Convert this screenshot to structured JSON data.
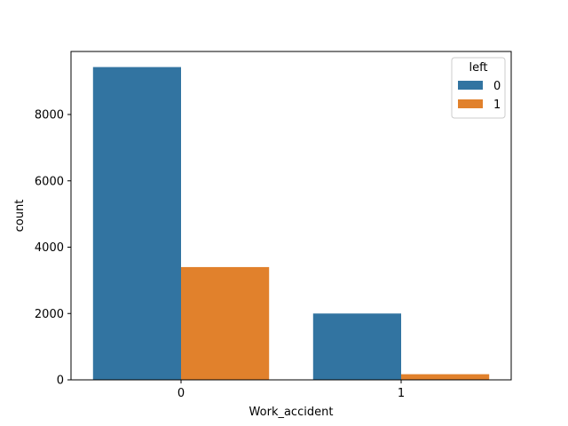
{
  "chart_data": {
    "type": "bar",
    "title": "",
    "xlabel": "Work_accident",
    "ylabel": "count",
    "categories": [
      "0",
      "1"
    ],
    "ylim": [
      0,
      9900
    ],
    "yticks": [
      0,
      2000,
      4000,
      6000,
      8000
    ],
    "grid": false,
    "legend": {
      "title": "left",
      "placement": "top-right"
    },
    "series": [
      {
        "name": "0",
        "color": "#3274a1",
        "values": [
          9430,
          2000
        ]
      },
      {
        "name": "1",
        "color": "#e1812c",
        "values": [
          3400,
          170
        ]
      }
    ]
  }
}
